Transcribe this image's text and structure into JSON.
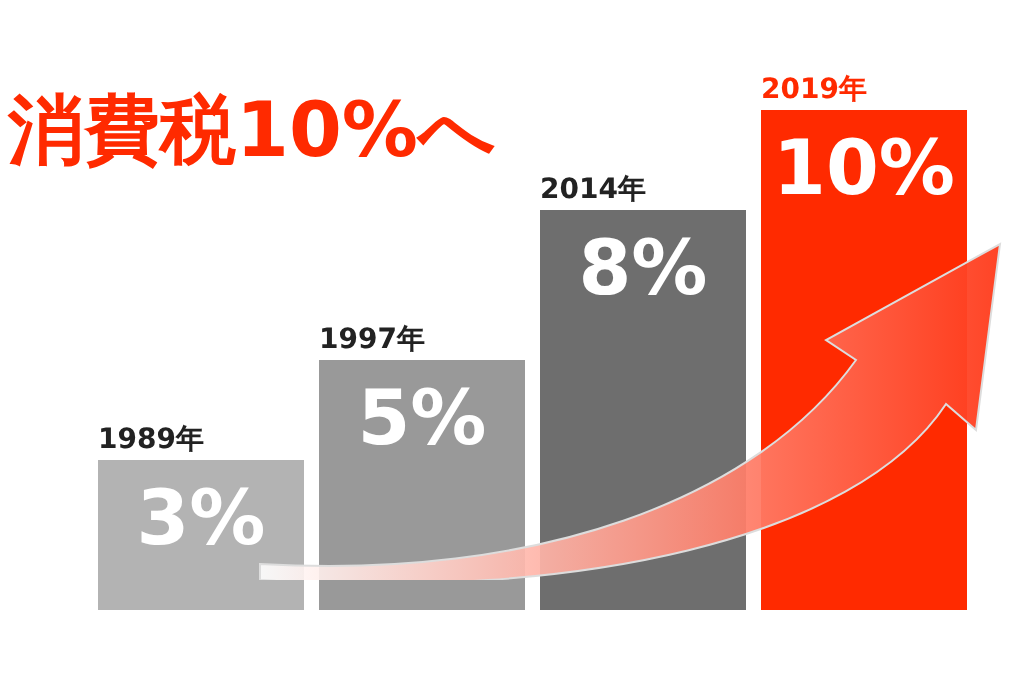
{
  "chart_data": {
    "type": "bar",
    "title": "消費税10%へ",
    "categories": [
      "1989年",
      "1997年",
      "2014年",
      "2019年"
    ],
    "values": [
      3,
      5,
      8,
      10
    ],
    "value_labels": [
      "3%",
      "5%",
      "8%",
      "10%"
    ],
    "colors": [
      "#b3b3b3",
      "#999999",
      "#6e6e6e",
      "#ff2a00"
    ],
    "tick_labels": "x"
  }
}
